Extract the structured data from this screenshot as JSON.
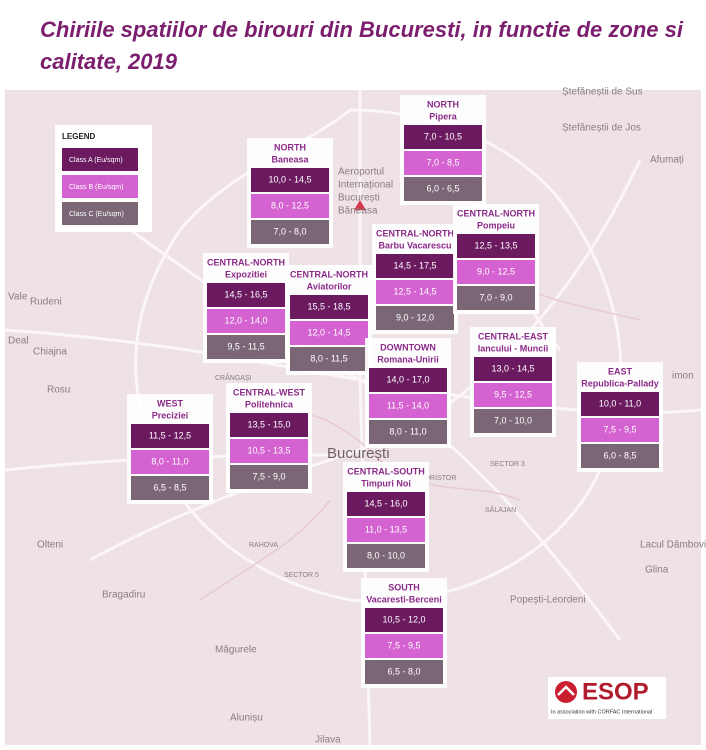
{
  "title": "Chiriile spatiilor de birouri din Bucuresti, in functie de zone si calitate, 2019",
  "legend": {
    "title": "LEGEND",
    "items": [
      "Class A (Eu/sqm)",
      "Class B (Eu/sqm)",
      "Class C (Eu/sqm)"
    ]
  },
  "zones": [
    {
      "area": "NORTH",
      "name": "Pipera",
      "ranges": [
        "7,0 - 10,5",
        "7,0 - 8,5",
        "6,0 - 6,5"
      ]
    },
    {
      "area": "NORTH",
      "name": "Baneasa",
      "ranges": [
        "10,0 - 14,5",
        "8,0 - 12,5",
        "7,0 - 8,0"
      ]
    },
    {
      "area": "CENTRAL-NORTH",
      "name": "Barbu Vacarescu",
      "ranges": [
        "14,5 - 17,5",
        "12,5 - 14,5",
        "9,0 - 12,0"
      ]
    },
    {
      "area": "CENTRAL-NORTH",
      "name": "Pompeiu",
      "ranges": [
        "12,5 - 13,5",
        "9,0 - 12,5",
        "7,0 - 9,0"
      ]
    },
    {
      "area": "CENTRAL-NORTH",
      "name": "Expozitiei",
      "ranges": [
        "14,5 - 16,5",
        "12,0 - 14,0",
        "9,5 - 11,5"
      ]
    },
    {
      "area": "CENTRAL-NORTH",
      "name": "Aviatorilor",
      "ranges": [
        "15,5 - 18,5",
        "12,0 - 14,5",
        "8,0 - 11,5"
      ]
    },
    {
      "area": "DOWNTOWN",
      "name": "Romana-Unirii",
      "ranges": [
        "14,0 - 17,0",
        "11,5 - 14,0",
        "8,0 - 11,0"
      ]
    },
    {
      "area": "CENTRAL-EAST",
      "name": "Iancului - Muncii",
      "ranges": [
        "13,0 - 14,5",
        "9,5 - 12,5",
        "7,0 - 10,0"
      ]
    },
    {
      "area": "EAST",
      "name": "Republica-Pallady",
      "ranges": [
        "10,0 - 11,0",
        "7,5 - 9,5",
        "6,0 - 8,5"
      ]
    },
    {
      "area": "WEST",
      "name": "Preciziei",
      "ranges": [
        "11,5 - 12,5",
        "8,0 - 11,0",
        "6,5 - 8,5"
      ]
    },
    {
      "area": "CENTRAL-WEST",
      "name": "Politehnica",
      "ranges": [
        "13,5 - 15,0",
        "10,5 - 13,5",
        "7,5 - 9,0"
      ]
    },
    {
      "area": "CENTRAL-SOUTH",
      "name": "Timpuri Noi",
      "ranges": [
        "14,5 - 16,0",
        "11,0 - 13,5",
        "8,0 - 10,0"
      ]
    },
    {
      "area": "SOUTH",
      "name": "Vacaresti-Berceni",
      "ranges": [
        "10,5 - 12,0",
        "7,5 - 9,5",
        "6,5 - 8,0"
      ]
    }
  ],
  "places": [
    "Ștefăneștii de Sus",
    "Ștefăneștii de Jos",
    "Afumați",
    "Aeroportul",
    "Internațional",
    "București",
    "Băneasa",
    "Rudeni",
    "Chiajna",
    "Rosu",
    "Olteni",
    "Bragadiru",
    "Măgurele",
    "Alunișu",
    "Jilava",
    "Popești-Leordeni",
    "Glina",
    "București",
    "SECTOR 3",
    "SECTOR 5",
    "DRISTOR",
    "RAHOVA",
    "SĂLAJAN",
    "CRÂNGAȘI",
    "Lacul Dâmbovița",
    "Vale",
    "Deal",
    "imon"
  ],
  "logo": {
    "name": "ESOP",
    "tagline": "In association with CORFAC International"
  }
}
